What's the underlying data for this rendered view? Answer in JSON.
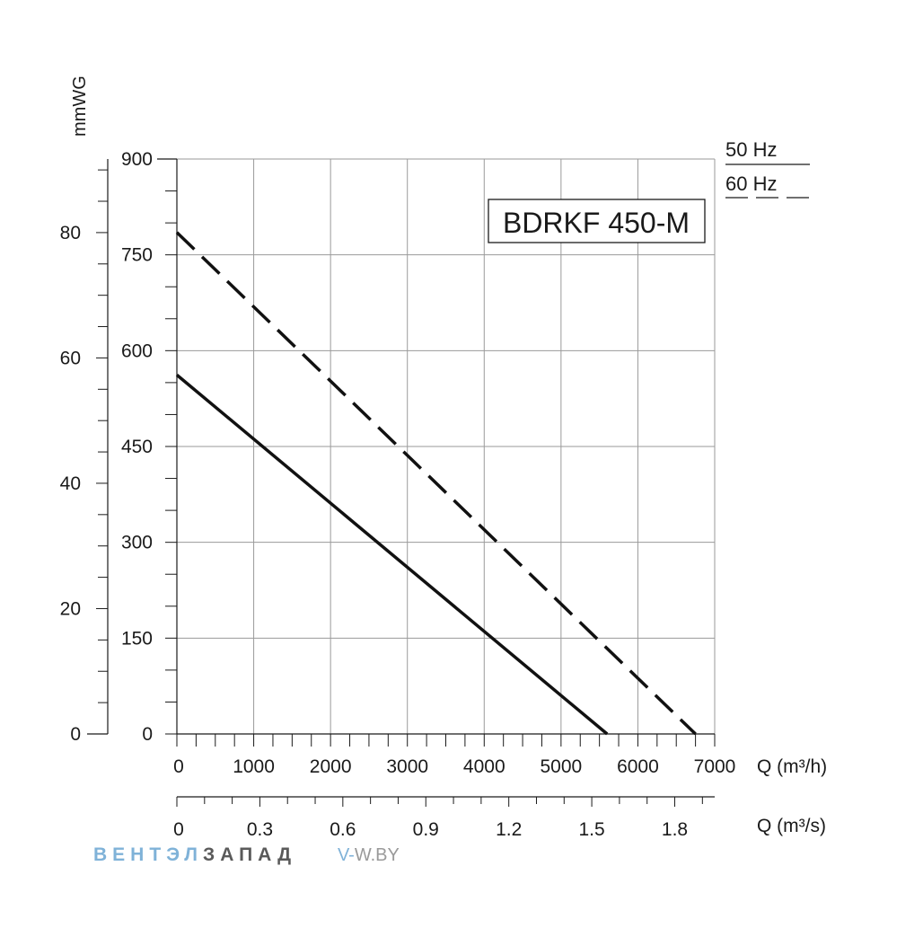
{
  "chart_data": {
    "type": "line",
    "title": "BDRKF 450-M",
    "x": {
      "label": "Q (m³/h)",
      "range": [
        0,
        7000
      ],
      "ticks": [
        "0",
        "1000",
        "2000",
        "3000",
        "4000",
        "5000",
        "6000",
        "7000"
      ],
      "tick_values": [
        0,
        1000,
        2000,
        3000,
        4000,
        5000,
        6000,
        7000
      ]
    },
    "x2": {
      "label": "Q (m³/s)",
      "range": [
        0,
        1.9444
      ],
      "ticks": [
        "0",
        "0.3",
        "0.6",
        "0.9",
        "1.2",
        "1.5",
        "1.8"
      ],
      "tick_values": [
        0,
        0.3,
        0.6,
        0.9,
        1.2,
        1.5,
        1.8
      ]
    },
    "y_pa": {
      "range": [
        0,
        900
      ],
      "ticks": [
        "0",
        "150",
        "300",
        "450",
        "600",
        "750",
        "900"
      ],
      "tick_values": [
        0,
        150,
        300,
        450,
        600,
        750,
        900
      ]
    },
    "y_mmwg": {
      "label": "mmWG",
      "range": [
        0,
        91.74
      ],
      "ticks": [
        "0",
        "20",
        "40",
        "60",
        "80"
      ],
      "tick_values": [
        0,
        20,
        40,
        60,
        80
      ]
    },
    "legend": [
      {
        "label": "50 Hz",
        "style": "solid"
      },
      {
        "label": "60 Hz",
        "style": "dashed"
      }
    ],
    "series": [
      {
        "name": "50 Hz",
        "style": "solid",
        "x": [
          0,
          5600
        ],
        "y": [
          562,
          0
        ]
      },
      {
        "name": "60 Hz",
        "style": "dashed",
        "x": [
          0,
          6750
        ],
        "y": [
          785,
          0
        ]
      }
    ],
    "grid": true
  },
  "watermark": {
    "part1": "ВЕНТЭЛ",
    "part2": "ЗАПАД",
    "site_a": "V-",
    "site_b": "W.BY"
  }
}
